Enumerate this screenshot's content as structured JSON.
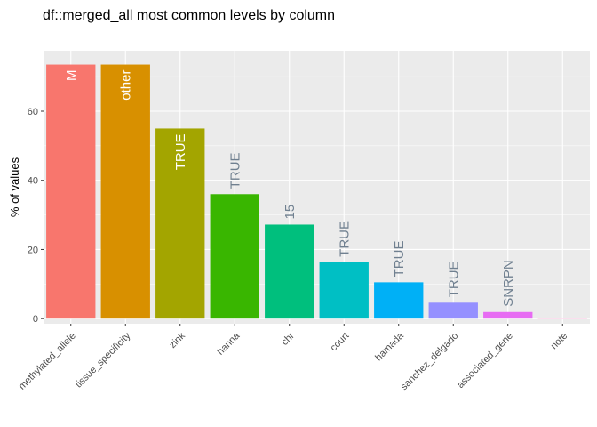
{
  "chart_data": {
    "type": "bar",
    "title": "df::merged_all most common levels by column",
    "xlabel": "",
    "ylabel": "% of values",
    "ylim": [
      -1.5,
      77.5
    ],
    "yticks": [
      0,
      20,
      40,
      60
    ],
    "grid": true,
    "legend": "none",
    "panel_background": "#EBEBEB",
    "categories": [
      "methylated_allele",
      "tissue_specificity",
      "zink",
      "hanna",
      "chr",
      "court",
      "hamada",
      "sanchez_delgado",
      "associated_gene",
      "note"
    ],
    "values": [
      73.5,
      73.5,
      55.0,
      36.0,
      27.2,
      16.3,
      10.5,
      4.6,
      1.9,
      0.3
    ],
    "bar_labels": [
      "M",
      "other",
      "TRUE",
      "TRUE",
      "15",
      "TRUE",
      "TRUE",
      "TRUE",
      "SNRPN",
      ""
    ],
    "colors": [
      "#F8766D",
      "#D89000",
      "#A3A500",
      "#39B600",
      "#00BF7D",
      "#00BFC4",
      "#00B0F6",
      "#9590FF",
      "#E76BF3",
      "#FF62BC"
    ],
    "label_inside": [
      true,
      true,
      true,
      false,
      false,
      false,
      false,
      false,
      false,
      false
    ],
    "label_inside_color": "#FFFFFF",
    "label_outside_color": "#708090"
  }
}
